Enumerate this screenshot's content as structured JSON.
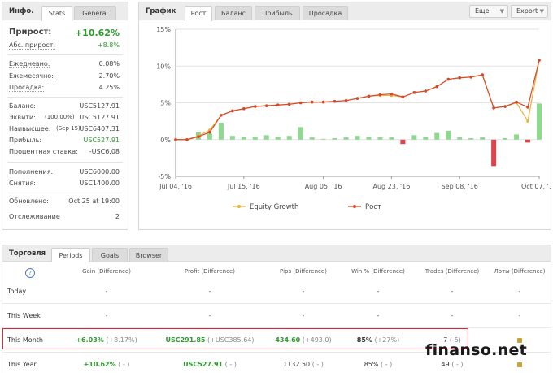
{
  "info_panel": {
    "title": "Инфо.",
    "tabs": [
      "Stats",
      "General"
    ],
    "growth_label": "Прирост:",
    "growth_value": "+10.62%",
    "abs_label": "Абс. прирост:",
    "abs_value": "+8.8%",
    "daily_label": "Ежедневно:",
    "daily_value": "0.08%",
    "monthly_label": "Ежемесячно:",
    "monthly_value": "2.70%",
    "drawdown_label": "Просадка:",
    "drawdown_value": "4.25%",
    "balance_label": "Баланс:",
    "balance_value": "USC5127.91",
    "equity_label": "Эквити:",
    "equity_mid": "(100.00%)",
    "equity_value": "USC5127.91",
    "highest_label": "Наивысшее:",
    "highest_mid": "(Sep 15)",
    "highest_value": "USC6407.31",
    "profit_label": "Прибыль:",
    "profit_value": "USC527.91",
    "interest_label": "Процентная ставка:",
    "interest_value": "-USC6.08",
    "deposits_label": "Пополнения:",
    "deposits_value": "USC6000.00",
    "withdrawals_label": "Снятия:",
    "withdrawals_value": "USC1400.00",
    "updated_label": "Обновлено:",
    "updated_value": "Oct 25 at 19:00",
    "tracking_label": "Отслеживание",
    "tracking_value": "2"
  },
  "chart_panel": {
    "title": "График",
    "tabs": [
      "Рост",
      "Баланс",
      "Прибыль",
      "Просадка"
    ],
    "more_label": "Еще",
    "export_label": "Export",
    "legend_equity": "Equity Growth",
    "legend_growth": "Рост"
  },
  "chart_data": {
    "type": "line",
    "y_ticks": [
      "15%",
      "10%",
      "5%",
      "0%",
      "-5%"
    ],
    "ylim": [
      -5,
      15
    ],
    "x_ticks": [
      "Jul 04, '16",
      "Jul 15, '16",
      "Aug 05, '16",
      "Aug 23, '16",
      "Sep 08, '16",
      "Oct 07, '16"
    ],
    "x_tick_index": [
      0,
      6,
      13,
      19,
      25,
      32
    ],
    "series": [
      {
        "name": "Рост",
        "color": "#d9472b",
        "values": [
          0,
          0,
          0.4,
          1.0,
          3.3,
          3.9,
          4.2,
          4.5,
          4.6,
          4.7,
          4.8,
          5.0,
          5.1,
          5.1,
          5.2,
          5.3,
          5.6,
          5.9,
          6.1,
          6.2,
          5.8,
          6.4,
          6.6,
          7.2,
          8.2,
          8.4,
          8.5,
          8.8,
          4.3,
          4.5,
          5.1,
          4.4,
          10.8
        ]
      },
      {
        "name": "Equity Growth",
        "color": "#e8b23a",
        "values": [
          0,
          0,
          0.5,
          1.3,
          3.3,
          3.9,
          4.2,
          4.5,
          4.6,
          4.7,
          4.8,
          5.0,
          5.1,
          5.1,
          5.2,
          5.3,
          5.6,
          5.9,
          6.0,
          6.0,
          5.8,
          6.4,
          6.6,
          7.2,
          8.2,
          8.4,
          8.5,
          8.8,
          4.3,
          4.5,
          5.0,
          2.5,
          10.8
        ]
      }
    ],
    "bars": [
      0,
      0,
      1.0,
      0.8,
      2.3,
      0.5,
      0.4,
      0.4,
      0.6,
      0.4,
      0.5,
      1.7,
      0.3,
      0.1,
      0.2,
      0.3,
      0.5,
      0.4,
      0.3,
      0.3,
      -0.6,
      0.6,
      0.4,
      0.9,
      1.2,
      0.3,
      0.2,
      0.3,
      -3.6,
      0.2,
      0.7,
      -0.4,
      4.9
    ],
    "bar_color_pos": "#8dd98d",
    "bar_color_neg": "#e0424b"
  },
  "trade_panel": {
    "title": "Торговля",
    "tabs": [
      "Periods",
      "Goals",
      "Browser"
    ],
    "help_icon": "?",
    "headers": [
      "Gain (Difference)",
      "Profit (Difference)",
      "Pips (Difference)",
      "Win % (Difference)",
      "Trades (Difference)",
      "Лоты (Difference)"
    ],
    "rows": [
      {
        "label": "Today",
        "gain": "-",
        "gain_diff": "",
        "profit": "-",
        "profit_diff": "",
        "pips": "-",
        "pips_diff": "",
        "win": "-",
        "win_diff": "",
        "trades": "-",
        "trades_diff": "",
        "lots": "-"
      },
      {
        "label": "This Week",
        "gain": "-",
        "gain_diff": "",
        "profit": "-",
        "profit_diff": "",
        "pips": "-",
        "pips_diff": "",
        "win": "-",
        "win_diff": "",
        "trades": "-",
        "trades_diff": "",
        "lots": "-"
      },
      {
        "label": "This Month",
        "gain": "+6.03%",
        "gain_diff": "(+8.17%)",
        "profit": "USC291.85",
        "profit_diff": "(+USC385.64)",
        "pips": "434.60",
        "pips_diff": "(+493.0)",
        "win": "85%",
        "win_diff": "(+27%)",
        "trades": "7",
        "trades_diff": "(-5)",
        "lots": ""
      },
      {
        "label": "This Year",
        "gain": "+10.62%",
        "gain_diff": "( - )",
        "profit": "USC527.91",
        "profit_diff": "( - )",
        "pips": "1132.50",
        "pips_diff": "( - )",
        "win": "85%",
        "win_diff": "( - )",
        "trades": "49",
        "trades_diff": "( - )",
        "lots": ""
      }
    ]
  },
  "watermark": "finanso.net"
}
